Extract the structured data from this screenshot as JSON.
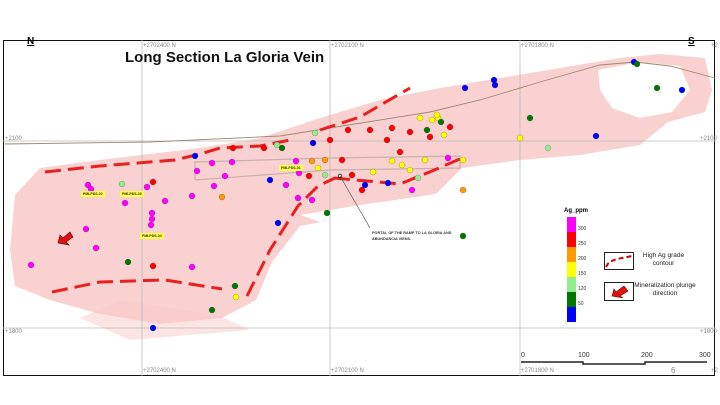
{
  "title": "Long Section La Gloria Vein",
  "directions": {
    "left": "N",
    "right": "S"
  },
  "grid": {
    "northings": [
      "+2702400 N",
      "+2702100 N",
      "+2701800 N",
      "+2"
    ],
    "elevations": {
      "upper": "+2100",
      "lower": "+1800"
    }
  },
  "drillhole_labels": [
    "PMLPDS-02",
    "PMLPDS-03",
    "PMLPDS-04",
    "PMLPDS-01"
  ],
  "annotation": "PORTAL OF THE RAMP TO LA GLORIA AND ABUNDANCIA VIENS.",
  "legend": {
    "title": "Ag_ppm",
    "ticks": [
      "300",
      "250",
      "200",
      "150",
      "120",
      "50"
    ],
    "colors": [
      "#ff00ff",
      "#ff0000",
      "#ff9900",
      "#ffff00",
      "#90ee90",
      "#007700",
      "#0000ff"
    ],
    "contour_label": "High Ag grade contour",
    "plunge_label": "Mineralization plunge direction"
  },
  "scale_bar": {
    "labels": [
      "0",
      "100",
      "200",
      "300"
    ]
  },
  "page_number": "6",
  "colors": {
    "vein_body": "#f9c9c9",
    "contour": "#e82020",
    "topography": "#a08870"
  }
}
